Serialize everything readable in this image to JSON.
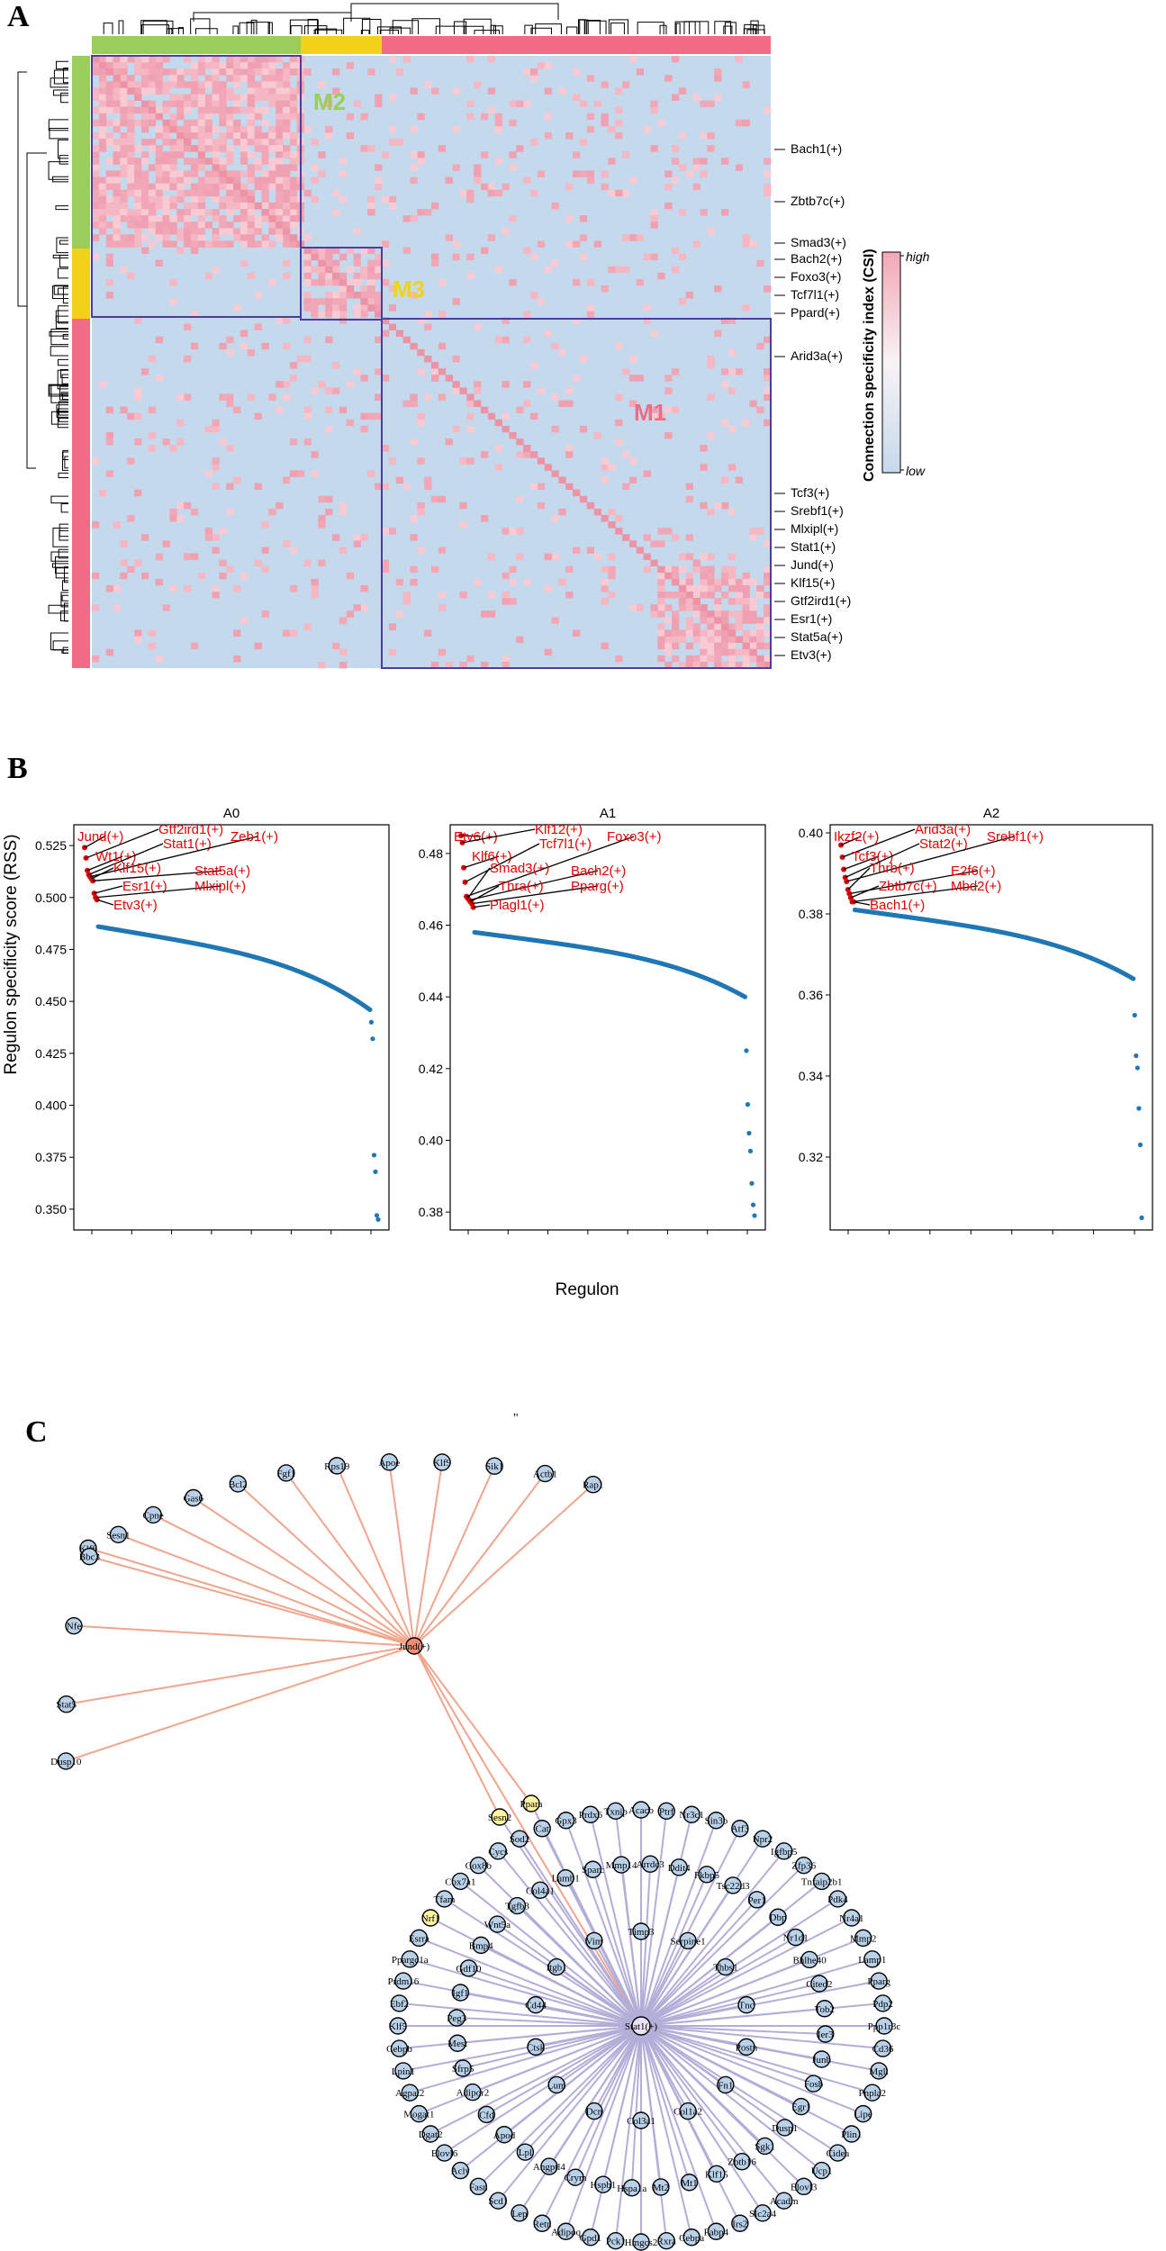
{
  "panel_labels": {
    "a": "A",
    "b": "B",
    "c": "C"
  },
  "panel_a": {
    "modules": [
      {
        "name": "M2",
        "color": "#9ACD5C"
      },
      {
        "name": "M3",
        "color": "#F2D218"
      },
      {
        "name": "M1",
        "color": "#F06B85"
      }
    ],
    "row_labels": [
      "Bach1(+)",
      "Zbtb7c(+)",
      "Smad3(+)",
      "Bach2(+)",
      "Foxo3(+)",
      "Tcf7l1(+)",
      "Ppard(+)",
      "Arid3a(+)",
      "Tcf3(+)",
      "Srebf1(+)",
      "Mlxipl(+)",
      "Stat1(+)",
      "Jund(+)",
      "Klf15(+)",
      "Gtf2ird1(+)",
      "Esr1(+)",
      "Stat5a(+)",
      "Etv3(+)"
    ],
    "colorbar": {
      "title": "Connection specificity index (CSI)",
      "high": "high",
      "low": "low",
      "high_color": "#F2A7B6",
      "low_color": "#C5D9EC"
    }
  },
  "chart_data": [
    {
      "type": "scatter",
      "title": "A0",
      "ylabel": "Regulon specificity score (RSS)",
      "ylim": [
        0.34,
        0.535
      ],
      "yticks": [
        "0.525",
        "0.500",
        "0.475",
        "0.450",
        "0.425",
        "0.400",
        "0.375",
        "0.350"
      ],
      "labels": [
        "Jund(+)",
        "Gtf2ird1(+)",
        "Wt1(+)",
        "Stat1(+)",
        "Zeb1(+)",
        "Klf15(+)",
        "Stat5a(+)",
        "Esr1(+)",
        "Mlxipl(+)",
        "Etv3(+)"
      ],
      "top_values": [
        0.524,
        0.519,
        0.513,
        0.511,
        0.51,
        0.509,
        0.508,
        0.502,
        0.5,
        0.499
      ],
      "range": [
        0.486,
        0.446
      ],
      "tail": [
        0.44,
        0.432,
        0.376,
        0.368,
        0.347,
        0.345
      ]
    },
    {
      "type": "scatter",
      "title": "A1",
      "ylim": [
        0.375,
        0.488
      ],
      "yticks": [
        "0.48",
        "0.46",
        "0.44",
        "0.42",
        "0.40",
        "0.38"
      ],
      "labels": [
        "Etv6(+)",
        "Klf12(+)",
        "Klf6(+)",
        "Tcf7l1(+)",
        "Foxo3(+)",
        "Smad3(+)",
        "Bach2(+)",
        "Thra(+)",
        "Pparg(+)",
        "Plagl1(+)"
      ],
      "top_values": [
        0.485,
        0.483,
        0.476,
        0.472,
        0.468,
        0.4675,
        0.467,
        0.4665,
        0.466,
        0.465
      ],
      "range": [
        0.458,
        0.44
      ],
      "tail": [
        0.425,
        0.41,
        0.402,
        0.397,
        0.388,
        0.382,
        0.379
      ]
    },
    {
      "type": "scatter",
      "title": "A2",
      "ylim": [
        0.302,
        0.402
      ],
      "yticks": [
        "0.40",
        "0.38",
        "0.36",
        "0.34",
        "0.32"
      ],
      "labels": [
        "Ikzf2(+)",
        "Arid3a(+)",
        "Tcf3(+)",
        "Stat2(+)",
        "Srebf1(+)",
        "Thrb(+)",
        "E2f6(+)",
        "Zbtb7c(+)",
        "Mbd2(+)",
        "Bach1(+)"
      ],
      "top_values": [
        0.397,
        0.394,
        0.391,
        0.389,
        0.388,
        0.386,
        0.385,
        0.384,
        0.383,
        0.383
      ],
      "range": [
        0.381,
        0.364
      ],
      "tail": [
        0.355,
        0.345,
        0.342,
        0.332,
        0.323,
        0.305
      ]
    }
  ],
  "panel_b": {
    "xlabel": "Regulon"
  },
  "panel_c": {
    "quote": "\"",
    "hub1": "Jund(+)",
    "hub2": "Stat1(+)",
    "jund_targets": [
      "Dusp10",
      "Stat5",
      "Nfe",
      "Klf6",
      "Bbc3",
      "Sesn1",
      "Cpne",
      "Gas6",
      "Bcl2",
      "Fgf1",
      "Rps19",
      "Apoe",
      "Klf9",
      "Sik1",
      "Actb1",
      "Rap1"
    ],
    "shared": [
      "Sesn2",
      "Ppara"
    ],
    "stat1_targets": [
      "Acacb",
      "Ptrf",
      "Nr3c1",
      "Sin3b",
      "Atf3",
      "Npr2",
      "Igfbp5",
      "Zfp36",
      "Tnfaip2b1",
      "Pdk4",
      "Nr4a1",
      "Mmp2",
      "Lamp1",
      "Pparg",
      "Pdp2",
      "Ppp1r3c",
      "Cd36",
      "Mgll",
      "Pnpla2",
      "Lipe",
      "Plin1",
      "Cidea",
      "Ucp1",
      "Elovl3",
      "Acadm",
      "Slc2a4",
      "Irs2",
      "Fabp4",
      "Cebpa",
      "Rxra",
      "Hmgcs2",
      "Pck1",
      "Gpd1",
      "Adipoq",
      "Retn",
      "Lep",
      "Scd1",
      "Fasn",
      "Acly",
      "Elovl6",
      "Dgat2",
      "Mogat1",
      "Agpat2",
      "Lpin1",
      "Cebpb",
      "Klf5",
      "Ebf2",
      "Prdm16",
      "Ppargc1a",
      "Esrra",
      "Nrf1",
      "Tfam",
      "Cox7a1",
      "Cox8b",
      "Cycs",
      "Sod2",
      "Cat",
      "Gpx3",
      "Prdx6",
      "Txnip",
      "Arrdc3",
      "Ddit4",
      "Fkbp5",
      "Tsc22d3",
      "Per1",
      "Dbp",
      "Nr1d1",
      "Bhlhe40",
      "Cited2",
      "Tob2",
      "Ier3",
      "Junb",
      "Fosb",
      "Egr1",
      "Dusp1",
      "Sgk1",
      "Zbtb16",
      "Klf15",
      "Mt1",
      "Mt2",
      "Hspa1a",
      "Hspb1",
      "Crym",
      "Angptl4",
      "Lpl",
      "Apod",
      "Cfd",
      "Adipor2",
      "Sfrp5",
      "Mest",
      "Peg3",
      "Igf1",
      "Gdf10",
      "Bmp4",
      "Wnt5a",
      "Tgfb3",
      "Col4a1",
      "Lamb1",
      "Sparc",
      "Mmp14",
      "Timp3",
      "Serpine1",
      "Thbs1",
      "Tnc",
      "Postn",
      "Fn1",
      "Col1a2",
      "Col3a1",
      "Dcn",
      "Lum",
      "Ctsk",
      "Cd44",
      "Itgb1",
      "Vim"
    ],
    "highlight_color": "#FAF5A0",
    "node_color": "#B9D2EA"
  }
}
